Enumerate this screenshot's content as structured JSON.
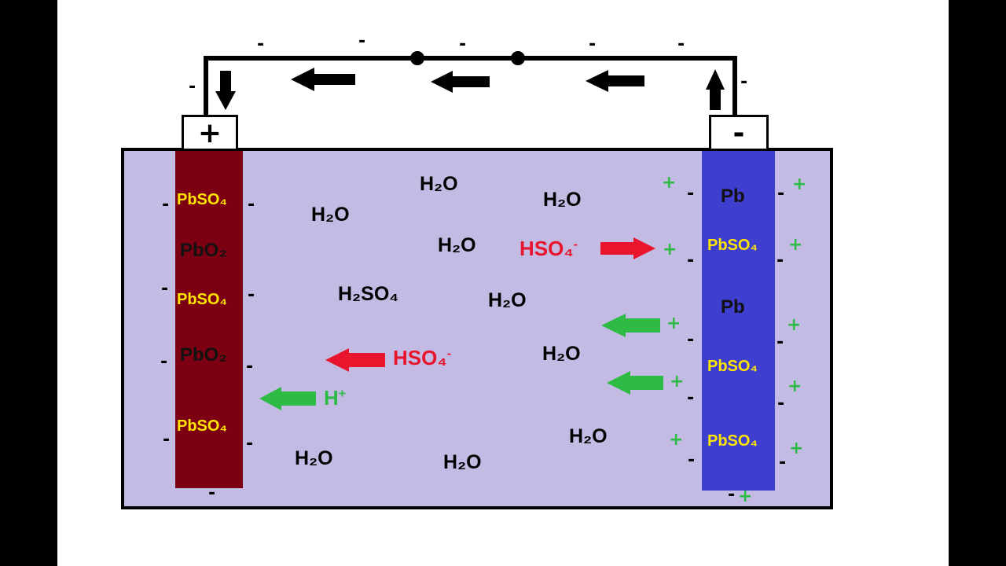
{
  "terminals": {
    "positive": "+",
    "negative": "-"
  },
  "molecules": {
    "h2o": "H₂O",
    "h2so4": "H₂SO₄",
    "hso4": "HSO₄",
    "hso4_charge": "-",
    "h": "H",
    "h_charge": "+"
  },
  "positive_plate": {
    "labels": [
      "PbSO₄",
      "PbO₂",
      "PbSO₄",
      "PbO₂",
      "PbSO₄"
    ]
  },
  "negative_plate": {
    "labels": [
      "Pb",
      "PbSO₄",
      "Pb",
      "PbSO₄",
      "PbSO₄"
    ]
  },
  "charges": {
    "minus": "-",
    "plus": "+"
  },
  "colors": {
    "electrolyte": "#c4bbe4",
    "positive_plate": "#7d0012",
    "negative_plate": "#3e3ecf",
    "ion_red": "#e8152c",
    "ion_green": "#2dbb45",
    "plate_text": "#ffe600"
  }
}
